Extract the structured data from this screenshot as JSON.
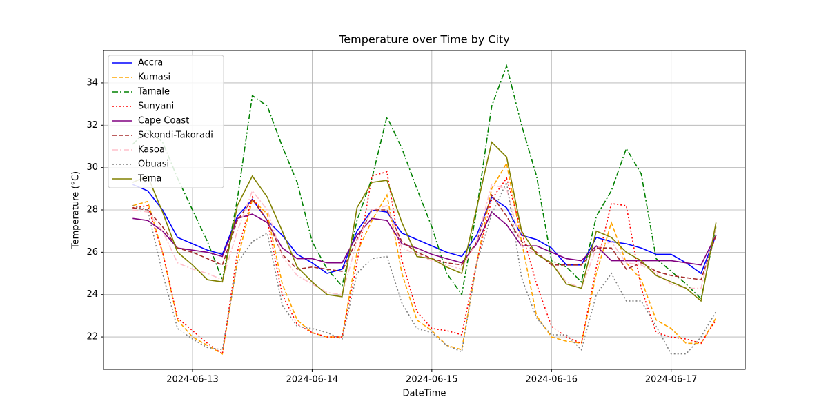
{
  "chart_data": {
    "type": "line",
    "title": "Temperature over Time by City",
    "x_label": "DateTime",
    "y_label": "Temperature (°C)",
    "x": [
      "2024-06-12T12:00",
      "2024-06-12T15:00",
      "2024-06-12T18:00",
      "2024-06-12T21:00",
      "2024-06-13T00:00",
      "2024-06-13T03:00",
      "2024-06-13T06:00",
      "2024-06-13T09:00",
      "2024-06-13T12:00",
      "2024-06-13T15:00",
      "2024-06-13T18:00",
      "2024-06-13T21:00",
      "2024-06-14T00:00",
      "2024-06-14T03:00",
      "2024-06-14T06:00",
      "2024-06-14T09:00",
      "2024-06-14T12:00",
      "2024-06-14T15:00",
      "2024-06-14T18:00",
      "2024-06-14T21:00",
      "2024-06-15T00:00",
      "2024-06-15T03:00",
      "2024-06-15T06:00",
      "2024-06-15T09:00",
      "2024-06-15T12:00",
      "2024-06-15T15:00",
      "2024-06-15T18:00",
      "2024-06-15T21:00",
      "2024-06-16T00:00",
      "2024-06-16T03:00",
      "2024-06-16T06:00",
      "2024-06-16T09:00",
      "2024-06-16T12:00",
      "2024-06-16T15:00",
      "2024-06-16T18:00",
      "2024-06-16T21:00",
      "2024-06-17T00:00",
      "2024-06-17T03:00",
      "2024-06-17T06:00",
      "2024-06-17T09:00"
    ],
    "series": [
      {
        "name": "Accra",
        "color": "#0000ff",
        "linestyle": "solid",
        "values": [
          29.2,
          28.9,
          28.0,
          26.7,
          26.4,
          26.1,
          25.9,
          27.7,
          28.5,
          27.5,
          26.8,
          25.9,
          25.5,
          25.0,
          25.2,
          27.0,
          28.0,
          27.9,
          26.9,
          26.6,
          26.3,
          26.0,
          25.8,
          26.8,
          28.6,
          28.1,
          26.8,
          26.6,
          26.2,
          25.4,
          25.4,
          26.7,
          26.5,
          26.4,
          26.2,
          25.9,
          25.9,
          25.5,
          25.0,
          26.8
        ]
      },
      {
        "name": "Kumasi",
        "color": "#ffa500",
        "linestyle": "dashed",
        "values": [
          28.2,
          28.4,
          26.0,
          22.8,
          22.0,
          21.6,
          21.2,
          25.6,
          28.5,
          27.8,
          24.5,
          22.8,
          22.2,
          22.0,
          22.0,
          26.0,
          27.5,
          28.7,
          25.0,
          22.8,
          22.3,
          21.6,
          21.4,
          25.5,
          29.0,
          30.2,
          26.5,
          23.0,
          22.0,
          21.8,
          21.7,
          25.0,
          27.4,
          25.5,
          24.7,
          22.8,
          22.4,
          21.7,
          21.7,
          22.9
        ]
      },
      {
        "name": "Tamale",
        "color": "#008000",
        "linestyle": "dashdot",
        "values": [
          31.1,
          31.8,
          31.2,
          29.5,
          28.0,
          26.5,
          24.7,
          28.5,
          33.4,
          32.9,
          31.0,
          29.3,
          26.5,
          25.2,
          24.4,
          27.5,
          29.5,
          32.4,
          30.9,
          29.0,
          27.2,
          25.0,
          24.0,
          28.0,
          32.9,
          34.8,
          32.0,
          29.6,
          25.6,
          25.3,
          24.6,
          27.7,
          28.9,
          30.9,
          29.7,
          25.7,
          25.1,
          24.5,
          23.8,
          27.2
        ]
      },
      {
        "name": "Sunyani",
        "color": "#ff0000",
        "linestyle": "dotted",
        "values": [
          28.1,
          28.2,
          26.0,
          22.9,
          22.3,
          21.7,
          21.2,
          26.0,
          28.6,
          27.5,
          24.0,
          22.6,
          22.2,
          22.0,
          22.0,
          25.5,
          29.6,
          29.8,
          25.6,
          23.2,
          22.4,
          22.3,
          22.1,
          25.5,
          28.5,
          29.5,
          27.0,
          24.5,
          22.5,
          22.0,
          21.7,
          25.3,
          28.3,
          28.2,
          24.3,
          22.2,
          22.0,
          21.9,
          21.7,
          22.8
        ]
      },
      {
        "name": "Cape Coast",
        "color": "#800080",
        "linestyle": "solid",
        "values": [
          27.6,
          27.5,
          27.0,
          26.2,
          26.1,
          26.0,
          25.8,
          27.6,
          27.8,
          27.4,
          26.2,
          25.7,
          25.7,
          25.5,
          25.5,
          26.8,
          27.6,
          27.5,
          26.4,
          26.2,
          25.9,
          25.7,
          25.5,
          26.4,
          27.9,
          27.3,
          26.3,
          26.3,
          26.0,
          25.7,
          25.6,
          26.3,
          25.6,
          25.6,
          25.6,
          25.6,
          25.6,
          25.5,
          25.4,
          26.8
        ]
      },
      {
        "name": "Sekondi-Takoradi",
        "color": "#a52a2a",
        "linestyle": "dashed",
        "values": [
          28.1,
          28.0,
          27.2,
          26.2,
          26.0,
          25.7,
          25.4,
          27.5,
          28.5,
          27.5,
          25.9,
          25.2,
          25.3,
          25.2,
          25.1,
          26.6,
          28.0,
          28.0,
          26.5,
          26.0,
          25.7,
          25.5,
          25.4,
          26.5,
          28.7,
          27.7,
          26.5,
          26.0,
          25.4,
          25.4,
          25.4,
          26.2,
          26.2,
          25.2,
          25.5,
          25.1,
          24.9,
          24.8,
          24.7,
          26.8
        ]
      },
      {
        "name": "Kasoa",
        "color": "#ffc0cb",
        "linestyle": "dashdot",
        "values": [
          28.0,
          27.9,
          27.0,
          25.5,
          25.2,
          25.0,
          24.7,
          27.0,
          28.9,
          28.0,
          25.8,
          24.9,
          24.5,
          24.1,
          24.0,
          26.5,
          28.0,
          28.2,
          26.2,
          25.9,
          25.6,
          25.4,
          25.2,
          26.5,
          29.2,
          29.0,
          26.3,
          25.9,
          25.5,
          24.6,
          24.3,
          26.2,
          26.5,
          25.5,
          25.4,
          25.0,
          24.5,
          24.3,
          24.3,
          27.2
        ]
      },
      {
        "name": "Obuasi",
        "color": "#808080",
        "linestyle": "dotted",
        "values": [
          28.2,
          28.0,
          25.0,
          22.4,
          21.9,
          21.5,
          21.4,
          25.5,
          26.5,
          26.9,
          23.5,
          22.5,
          22.4,
          22.2,
          21.9,
          25.0,
          25.7,
          25.8,
          23.6,
          22.4,
          22.2,
          21.6,
          21.3,
          25.5,
          27.8,
          29.3,
          24.8,
          22.9,
          22.1,
          22.1,
          21.4,
          24.0,
          25.0,
          23.7,
          23.7,
          22.5,
          21.2,
          21.2,
          22.0,
          23.2
        ]
      },
      {
        "name": "Tema",
        "color": "#808000",
        "linestyle": "solid",
        "values": [
          29.3,
          29.6,
          27.9,
          26.0,
          25.4,
          24.7,
          24.6,
          28.2,
          29.6,
          28.6,
          27.0,
          25.3,
          24.6,
          24.0,
          23.9,
          28.1,
          29.3,
          29.4,
          27.4,
          25.8,
          25.7,
          25.3,
          25.0,
          28.1,
          31.2,
          30.5,
          27.0,
          25.9,
          25.5,
          24.5,
          24.3,
          27.0,
          26.7,
          26.0,
          25.6,
          24.9,
          24.6,
          24.3,
          23.7,
          27.4
        ]
      }
    ],
    "xlim": [
      "2024-06-12T06:09",
      "2024-06-17T14:51"
    ],
    "xticks": [
      "2024-06-13",
      "2024-06-14",
      "2024-06-15",
      "2024-06-16",
      "2024-06-17"
    ],
    "ylim": [
      20.47,
      35.53
    ],
    "yticks": [
      22,
      24,
      26,
      28,
      30,
      32,
      34
    ],
    "grid": true,
    "legend": "upper left"
  }
}
